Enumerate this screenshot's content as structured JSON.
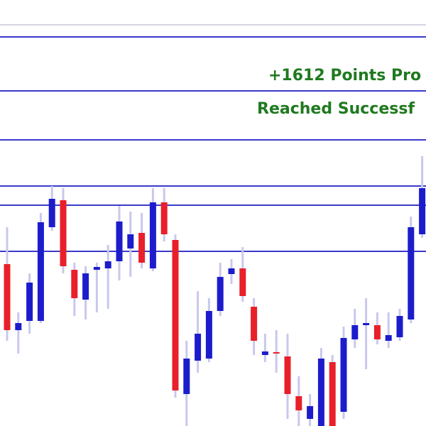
{
  "chart_data": {
    "type": "candlestick",
    "annotations": [
      "+1612 Points Pro",
      "Reached Successf"
    ],
    "annotation_color": "#1f7a1f",
    "up_color": "#1c1ccc",
    "down_color": "#e8202a",
    "wick_color": "#c8c8ee",
    "ylim": [
      0,
      600
    ],
    "reference_lines": [
      {
        "value": 565,
        "color": "#d4d4e2"
      },
      {
        "value": 548,
        "color": "#3a3acc"
      },
      {
        "value": 472,
        "color": "#3a3acc"
      },
      {
        "value": 403,
        "color": "#3a3acc"
      },
      {
        "value": 338,
        "color": "#3a3acc"
      },
      {
        "value": 311,
        "color": "#3a3acc"
      },
      {
        "value": 246,
        "color": "#3a3acc"
      }
    ],
    "open": [
      228,
      135,
      148,
      148,
      280,
      318,
      220,
      178,
      220,
      222,
      232,
      250,
      272,
      222,
      315,
      262,
      45,
      92,
      95,
      162,
      214,
      222,
      168,
      100,
      104,
      98,
      42,
      10,
      0,
      90,
      20,
      122,
      142,
      142,
      120,
      125,
      150,
      270
    ],
    "close": [
      135,
      145,
      202,
      287,
      320,
      225,
      180,
      215,
      224,
      232,
      288,
      270,
      230,
      315,
      270,
      50,
      95,
      130,
      162,
      210,
      222,
      183,
      120,
      105,
      102,
      45,
      22,
      28,
      95,
      0,
      124,
      142,
      145,
      122,
      128,
      155,
      280,
      335
    ],
    "high": [
      280,
      160,
      215,
      300,
      338,
      335,
      230,
      225,
      230,
      255,
      310,
      302,
      300,
      335,
      335,
      270,
      120,
      190,
      180,
      230,
      235,
      252,
      180,
      130,
      135,
      130,
      70,
      45,
      110,
      100,
      140,
      165,
      180,
      160,
      160,
      165,
      295,
      380
    ],
    "low": [
      120,
      102,
      130,
      145,
      275,
      215,
      155,
      150,
      160,
      165,
      205,
      210,
      222,
      218,
      260,
      40,
      0,
      75,
      90,
      155,
      200,
      175,
      100,
      90,
      75,
      10,
      0,
      0,
      0,
      0,
      10,
      110,
      80,
      115,
      110,
      120,
      145,
      265
    ]
  }
}
